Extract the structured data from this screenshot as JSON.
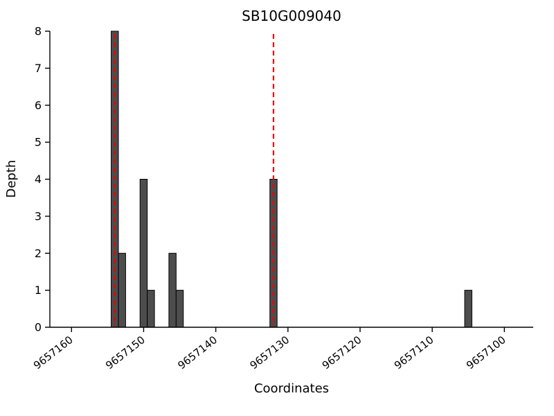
{
  "chart_data": {
    "type": "bar",
    "title": "SB10G009040",
    "xlabel": "Coordinates",
    "ylabel": "Depth",
    "x_axis_reversed": true,
    "xlim": [
      9657163,
      9657096
    ],
    "ylim": [
      0,
      8
    ],
    "xticks": [
      9657160,
      9657150,
      9657140,
      9657130,
      9657120,
      9657110,
      9657100
    ],
    "yticks": [
      0,
      1,
      2,
      3,
      4,
      5,
      6,
      7,
      8
    ],
    "bar_width": 1,
    "bars": [
      {
        "x": 9657154,
        "depth": 8
      },
      {
        "x": 9657153,
        "depth": 2
      },
      {
        "x": 9657150,
        "depth": 4
      },
      {
        "x": 9657149,
        "depth": 1
      },
      {
        "x": 9657146,
        "depth": 2
      },
      {
        "x": 9657145,
        "depth": 1
      },
      {
        "x": 9657132,
        "depth": 4
      },
      {
        "x": 9657105,
        "depth": 1
      }
    ],
    "vlines": {
      "positions": [
        9657154,
        9657132
      ],
      "style": "dashed"
    },
    "legend": "none",
    "grid": false,
    "colors": {
      "bar_fill": "#4d4d4d",
      "bar_edge": "#000000",
      "vline": "#ee0000",
      "axis": "#000000"
    }
  }
}
